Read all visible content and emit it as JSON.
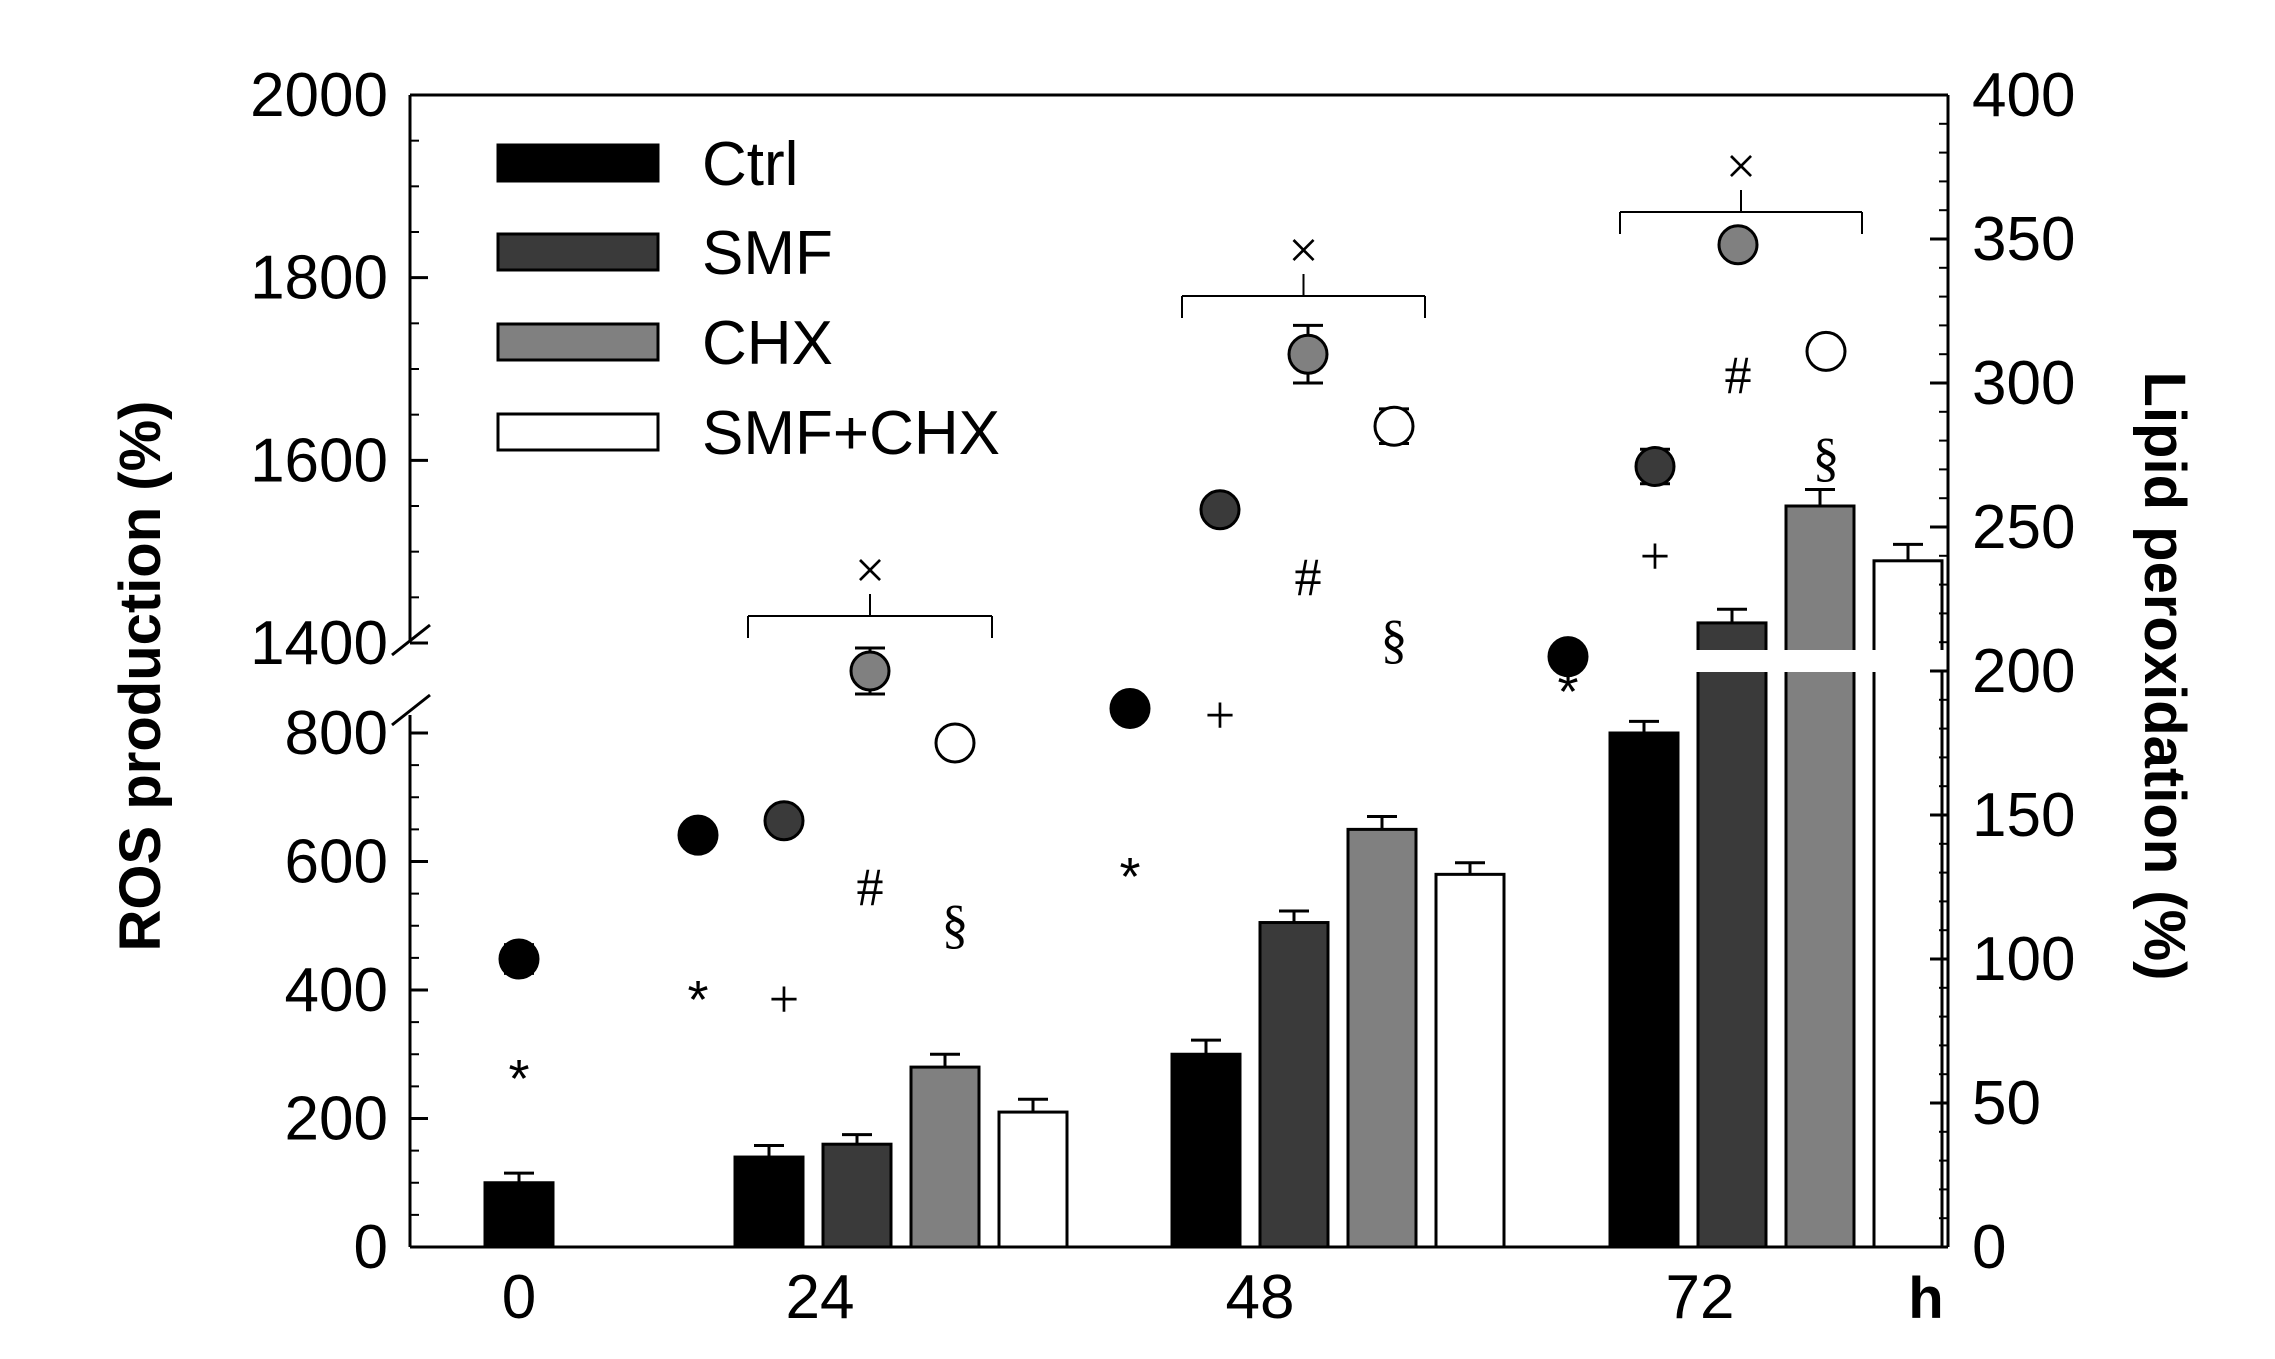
{
  "chart_data": {
    "type": "bar",
    "categories": [
      "0",
      "24",
      "48",
      "72"
    ],
    "x_unit_label": "h",
    "left_axis": {
      "label": "ROS production (%)",
      "lower_range": [
        0,
        850
      ],
      "upper_range": [
        1400,
        2000
      ],
      "lower_ticks": [
        "0",
        "200",
        "400",
        "600",
        "800"
      ],
      "upper_ticks": [
        "1400",
        "1600",
        "1800",
        "2000"
      ]
    },
    "right_axis": {
      "label": "Lipid peroxidation (%)",
      "range": [
        0,
        400
      ],
      "ticks": [
        "0",
        "50",
        "100",
        "150",
        "200",
        "250",
        "300",
        "350",
        "400"
      ]
    },
    "legend_placement": "top-left",
    "series": [
      {
        "name": "Ctrl",
        "color": "#000000",
        "bars": [
          100,
          140,
          300,
          800
        ],
        "bar_errors": [
          15,
          18,
          22,
          18
        ],
        "lipid": [
          null,
          143,
          187,
          205
        ],
        "lipid_errors": [
          null,
          0,
          0,
          0
        ],
        "lipid_x": [
          0.5,
          2.1,
          4.1,
          6.1
        ],
        "lipid_0": 100
      },
      {
        "name": "SMF",
        "color": "#3a3a3a",
        "bars": [
          null,
          160,
          505,
          1422
        ],
        "bar_errors": [
          null,
          15,
          18,
          15
        ],
        "lipid": [
          null,
          148,
          256,
          271
        ],
        "lipid_errors": [
          null,
          0,
          4,
          6
        ]
      },
      {
        "name": "CHX",
        "color": "#808080",
        "bars": [
          null,
          280,
          650,
          1550
        ],
        "bar_errors": [
          null,
          20,
          20,
          18
        ],
        "lipid": [
          null,
          200,
          310,
          348
        ],
        "lipid_errors": [
          null,
          8,
          10,
          0
        ]
      },
      {
        "name": "SMF+CHX",
        "color": "#ffffff",
        "bars": [
          null,
          210,
          580,
          1490
        ],
        "bar_errors": [
          null,
          20,
          18,
          18
        ],
        "lipid": [
          null,
          175,
          285,
          311
        ],
        "lipid_errors": [
          null,
          4,
          6,
          0
        ]
      }
    ],
    "annotations": {
      "star": "*",
      "plus": "+",
      "hash": "#",
      "section": "§",
      "times": "×"
    }
  }
}
